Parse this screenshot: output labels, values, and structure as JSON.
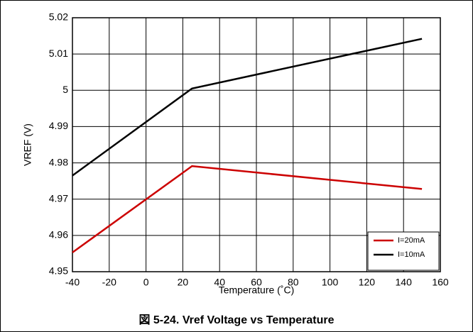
{
  "chart_data": {
    "type": "line",
    "caption": "図 5-24. Vref Voltage vs Temperature",
    "xlabel": "Temperature (˚C)",
    "ylabel": "VREF (V)",
    "x": [
      -40,
      25,
      150
    ],
    "series": [
      {
        "name": "I=20mA",
        "color": "#cc0000",
        "values": [
          4.9553,
          4.9791,
          4.9728
        ]
      },
      {
        "name": "I=10mA",
        "color": "#000000",
        "values": [
          4.9765,
          5.0005,
          5.0142
        ]
      }
    ],
    "xlim": [
      -40,
      160
    ],
    "xticks": [
      -40,
      -20,
      0,
      20,
      40,
      60,
      80,
      100,
      120,
      140,
      160
    ],
    "ylim": [
      4.95,
      5.02
    ],
    "yticks": [
      4.95,
      4.96,
      4.97,
      4.98,
      4.99,
      5,
      5.01,
      5.02
    ],
    "grid": true,
    "legend": "lower right"
  }
}
